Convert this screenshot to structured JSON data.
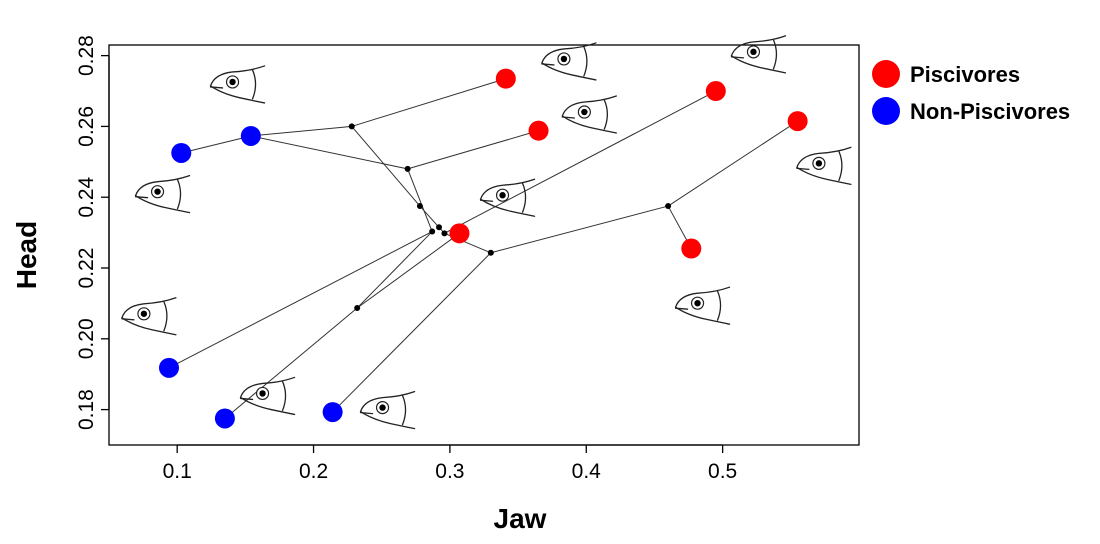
{
  "chart_data": {
    "type": "scatter",
    "xlabel": "Jaw",
    "ylabel": "Head",
    "xlim": [
      0.05,
      0.6
    ],
    "ylim": [
      0.17,
      0.283
    ],
    "x_ticks": [
      0.1,
      0.2,
      0.3,
      0.4,
      0.5
    ],
    "x_tick_labels": [
      "0.1",
      "0.2",
      "0.3",
      "0.4",
      "0.5"
    ],
    "y_ticks": [
      0.18,
      0.2,
      0.22,
      0.24,
      0.26,
      0.28
    ],
    "y_tick_labels": [
      "0.18",
      "0.20",
      "0.22",
      "0.24",
      "0.26",
      "0.28"
    ],
    "grid": false,
    "legend_position": "right",
    "series": [
      {
        "name": "Piscivores",
        "color": "#ff0000",
        "points": [
          {
            "x": 0.341,
            "y": 0.2735
          },
          {
            "x": 0.365,
            "y": 0.2588
          },
          {
            "x": 0.495,
            "y": 0.27
          },
          {
            "x": 0.555,
            "y": 0.2615
          },
          {
            "x": 0.307,
            "y": 0.2298
          },
          {
            "x": 0.477,
            "y": 0.2255
          }
        ]
      },
      {
        "name": "Non-Piscivores",
        "color": "#0000ff",
        "points": [
          {
            "x": 0.103,
            "y": 0.2525
          },
          {
            "x": 0.154,
            "y": 0.2573
          },
          {
            "x": 0.094,
            "y": 0.1918
          },
          {
            "x": 0.135,
            "y": 0.1775
          },
          {
            "x": 0.214,
            "y": 0.1793
          }
        ]
      }
    ],
    "nodes": [
      {
        "x": 0.228,
        "y": 0.26
      },
      {
        "x": 0.269,
        "y": 0.248
      },
      {
        "x": 0.278,
        "y": 0.2375
      },
      {
        "x": 0.287,
        "y": 0.2303
      },
      {
        "x": 0.292,
        "y": 0.2315
      },
      {
        "x": 0.296,
        "y": 0.2298
      },
      {
        "x": 0.232,
        "y": 0.2087
      },
      {
        "x": 0.33,
        "y": 0.2243
      },
      {
        "x": 0.46,
        "y": 0.2375
      }
    ],
    "edges": [
      [
        [
          0.103,
          0.2525
        ],
        [
          0.154,
          0.2573
        ]
      ],
      [
        [
          0.154,
          0.2573
        ],
        [
          0.228,
          0.26
        ]
      ],
      [
        [
          0.228,
          0.26
        ],
        [
          0.341,
          0.2735
        ]
      ],
      [
        [
          0.228,
          0.26
        ],
        [
          0.278,
          0.2375
        ]
      ],
      [
        [
          0.154,
          0.2573
        ],
        [
          0.269,
          0.248
        ]
      ],
      [
        [
          0.269,
          0.248
        ],
        [
          0.365,
          0.2588
        ]
      ],
      [
        [
          0.269,
          0.248
        ],
        [
          0.287,
          0.2303
        ]
      ],
      [
        [
          0.278,
          0.2375
        ],
        [
          0.292,
          0.2315
        ]
      ],
      [
        [
          0.292,
          0.2315
        ],
        [
          0.296,
          0.2298
        ]
      ],
      [
        [
          0.296,
          0.2298
        ],
        [
          0.495,
          0.27
        ]
      ],
      [
        [
          0.287,
          0.2303
        ],
        [
          0.094,
          0.1918
        ]
      ],
      [
        [
          0.287,
          0.2303
        ],
        [
          0.232,
          0.2087
        ]
      ],
      [
        [
          0.232,
          0.2087
        ],
        [
          0.135,
          0.1775
        ]
      ],
      [
        [
          0.232,
          0.2087
        ],
        [
          0.307,
          0.2298
        ]
      ],
      [
        [
          0.296,
          0.2298
        ],
        [
          0.33,
          0.2243
        ]
      ],
      [
        [
          0.33,
          0.2243
        ],
        [
          0.214,
          0.1793
        ]
      ],
      [
        [
          0.33,
          0.2243
        ],
        [
          0.46,
          0.2375
        ]
      ],
      [
        [
          0.46,
          0.2375
        ],
        [
          0.555,
          0.2615
        ]
      ],
      [
        [
          0.46,
          0.2375
        ],
        [
          0.477,
          0.2255
        ]
      ]
    ],
    "fish_illustrations": [
      {
        "name": "fish-icon-tall-head",
        "x": 0.145,
        "y": 0.272
      },
      {
        "name": "fish-icon-long-snout",
        "x": 0.388,
        "y": 0.2785
      },
      {
        "name": "fish-icon-slender-snout",
        "x": 0.527,
        "y": 0.2805
      },
      {
        "name": "fish-icon-deep-body",
        "x": 0.403,
        "y": 0.2635
      },
      {
        "name": "fish-icon-round-head",
        "x": 0.09,
        "y": 0.241
      },
      {
        "name": "fish-icon-large-eye",
        "x": 0.343,
        "y": 0.24
      },
      {
        "name": "fish-icon-pointed-snout",
        "x": 0.575,
        "y": 0.249
      },
      {
        "name": "fish-icon-small-head",
        "x": 0.08,
        "y": 0.2065
      },
      {
        "name": "fish-icon-narrow-snout",
        "x": 0.486,
        "y": 0.2095
      },
      {
        "name": "fish-icon-steep-profile",
        "x": 0.167,
        "y": 0.184
      },
      {
        "name": "fish-icon-blunt-snout",
        "x": 0.255,
        "y": 0.18
      }
    ]
  }
}
